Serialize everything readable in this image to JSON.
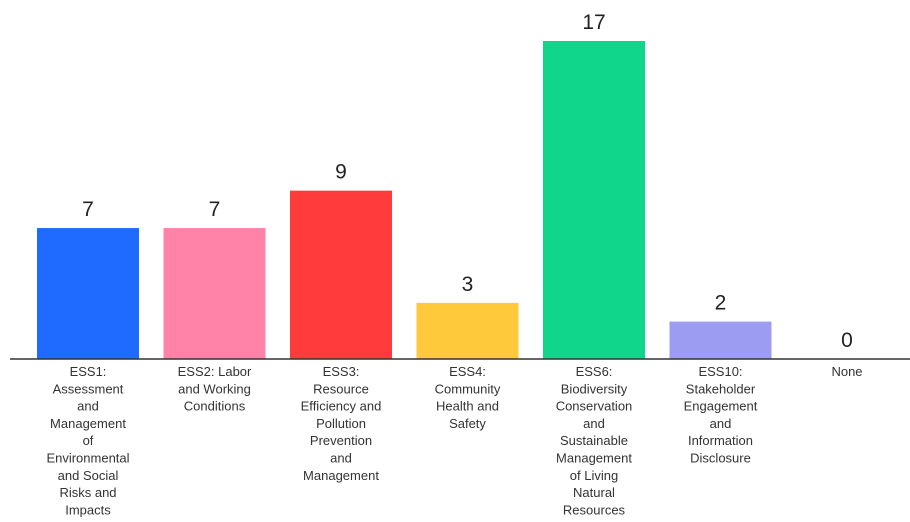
{
  "chart_data": {
    "type": "bar",
    "title": "",
    "xlabel": "",
    "ylabel": "",
    "ylim": [
      0,
      17
    ],
    "grid": false,
    "legend": "none",
    "categories": [
      "ESS1: Assessment and Management of Environmental and Social Risks and Impacts",
      "ESS2: Labor and Working Conditions",
      "ESS3: Resource Efficiency and Pollution Prevention and Management",
      "ESS4: Community Health and Safety",
      "ESS6: Biodiversity Conservation and Sustainable Management of Living Natural Resources",
      "ESS10: Stakeholder Engagement and Information Disclosure",
      "None"
    ],
    "category_label_lines": [
      [
        "ESS1:",
        "Assessment",
        "and",
        "Management",
        "of",
        "Environmental",
        "and Social",
        "Risks and",
        "Impacts"
      ],
      [
        "ESS2: Labor",
        "and Working",
        "Conditions"
      ],
      [
        "ESS3:",
        "Resource",
        "Efficiency and",
        "Pollution",
        "Prevention",
        "and",
        "Management"
      ],
      [
        "ESS4:",
        "Community",
        "Health and",
        "Safety"
      ],
      [
        "ESS6:",
        "Biodiversity",
        "Conservation",
        "and",
        "Sustainable",
        "Management",
        "of Living",
        "Natural",
        "Resources"
      ],
      [
        "ESS10:",
        "Stakeholder",
        "Engagement",
        "and",
        "Information",
        "Disclosure"
      ],
      [
        "None"
      ]
    ],
    "values": [
      7,
      7,
      9,
      3,
      17,
      2,
      0
    ],
    "data_labels": [
      "7",
      "7",
      "9",
      "3",
      "17",
      "2",
      "0"
    ],
    "colors": [
      "#1f6bff",
      "#ff82a9",
      "#ff3b3b",
      "#ffc93c",
      "#0fd68a",
      "#9c9cf2",
      "#cccccc"
    ]
  }
}
